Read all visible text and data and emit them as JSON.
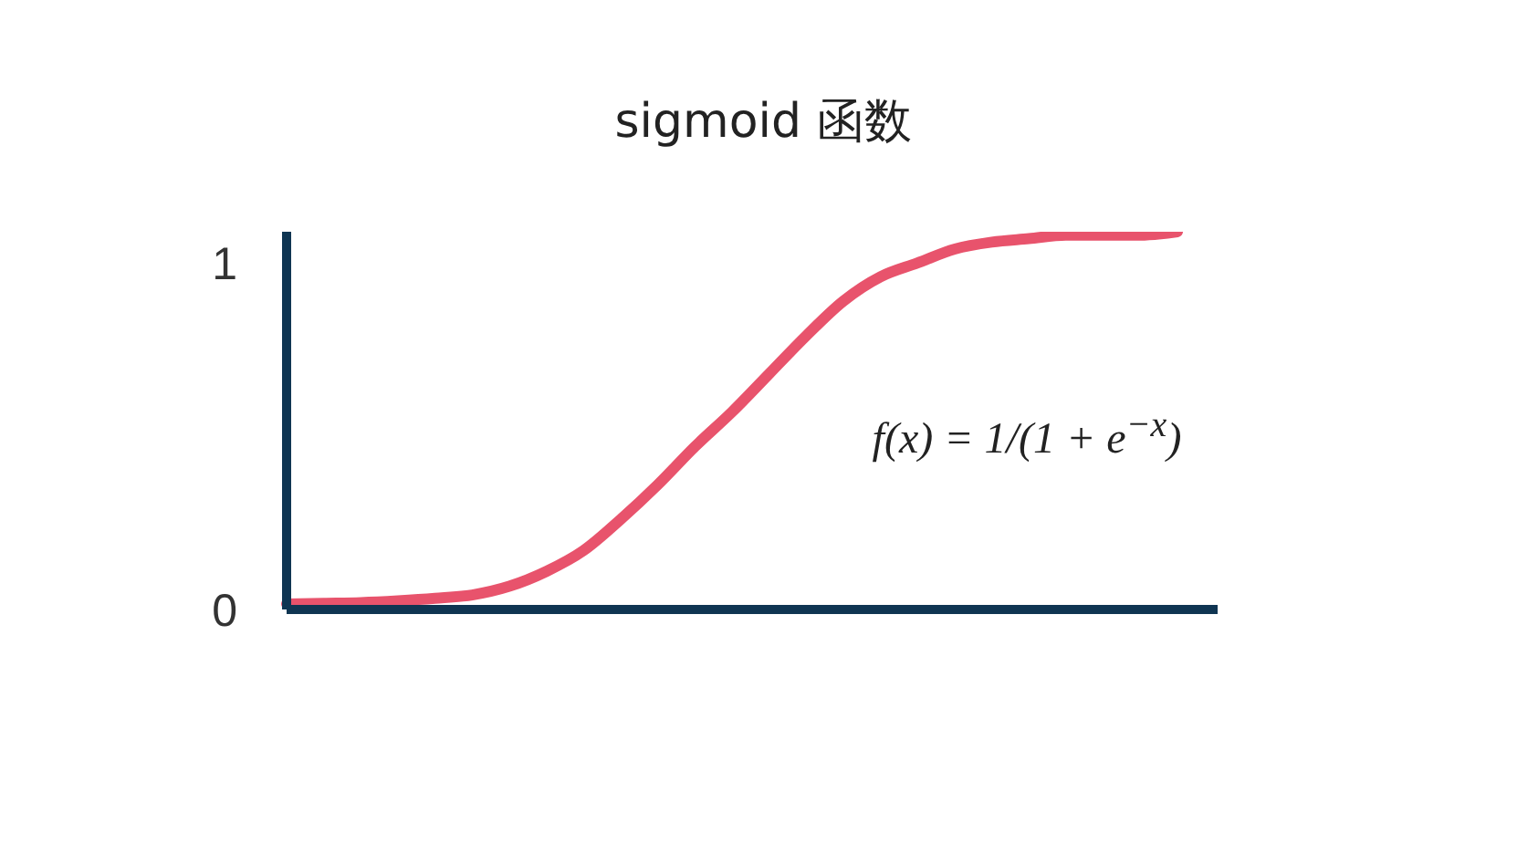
{
  "chart_data": {
    "type": "line",
    "title": "sigmoid 函数",
    "categories": [
      null,
      null,
      null,
      null,
      null,
      null,
      null,
      null,
      null,
      null,
      null,
      null,
      null,
      null,
      null,
      null,
      null,
      null,
      null,
      null,
      null,
      null,
      null,
      null,
      null
    ],
    "values": [
      0.016,
      0.018,
      0.02,
      0.025,
      0.032,
      0.042,
      0.067,
      0.11,
      0.17,
      0.26,
      0.36,
      0.47,
      0.57,
      0.68,
      0.79,
      0.89,
      0.96,
      1.0,
      1.04,
      1.06,
      1.07,
      1.08,
      1.08,
      1.08,
      1.09
    ],
    "color": "#e8536c",
    "ylim": [
      0,
      1.09
    ],
    "yticks": [
      0,
      1
    ],
    "tick_labels": "y",
    "annotations": [
      "f(x) = 1/(1 + e$^{−x}$)"
    ]
  }
}
